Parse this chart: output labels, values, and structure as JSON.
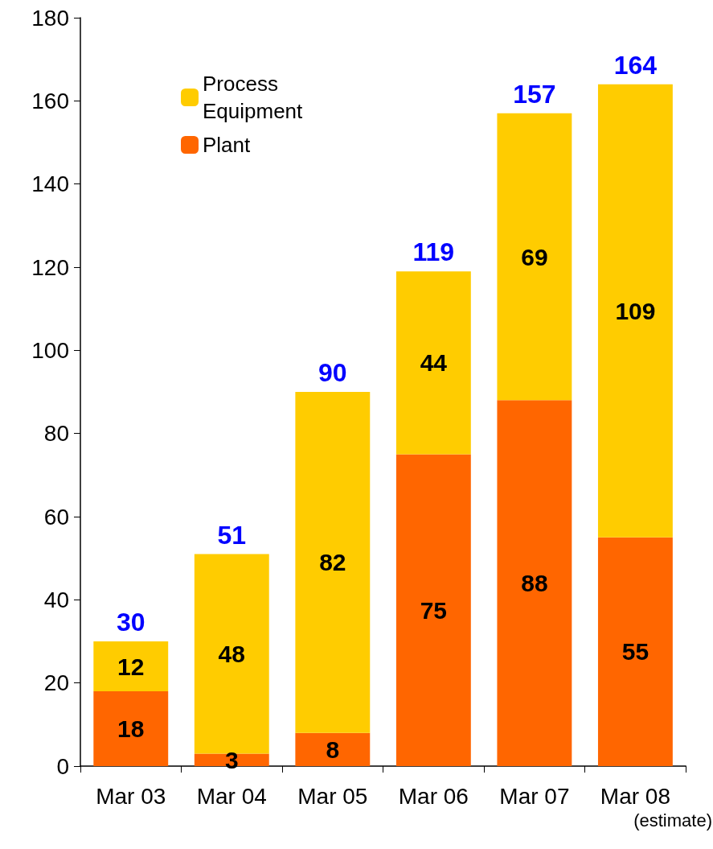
{
  "chart_data": {
    "type": "bar",
    "stacked": true,
    "categories": [
      "Mar 03",
      "Mar 04",
      "Mar 05",
      "Mar 06",
      "Mar 07",
      "Mar 08\n(estimate)"
    ],
    "series": [
      {
        "name": "Plant",
        "color": "#ff6600",
        "values": [
          18,
          3,
          8,
          75,
          88,
          55
        ]
      },
      {
        "name": "Process Equipment",
        "color": "#ffcc00",
        "values": [
          12,
          48,
          82,
          44,
          69,
          109
        ]
      }
    ],
    "totals": [
      "30",
      "51",
      "90",
      "119",
      "157",
      "164"
    ],
    "data_labels": true,
    "ylim": [
      0,
      180
    ],
    "yticks": [
      0,
      20,
      40,
      60,
      80,
      100,
      120,
      140,
      160,
      180
    ],
    "grid": false,
    "legend": "top left"
  }
}
